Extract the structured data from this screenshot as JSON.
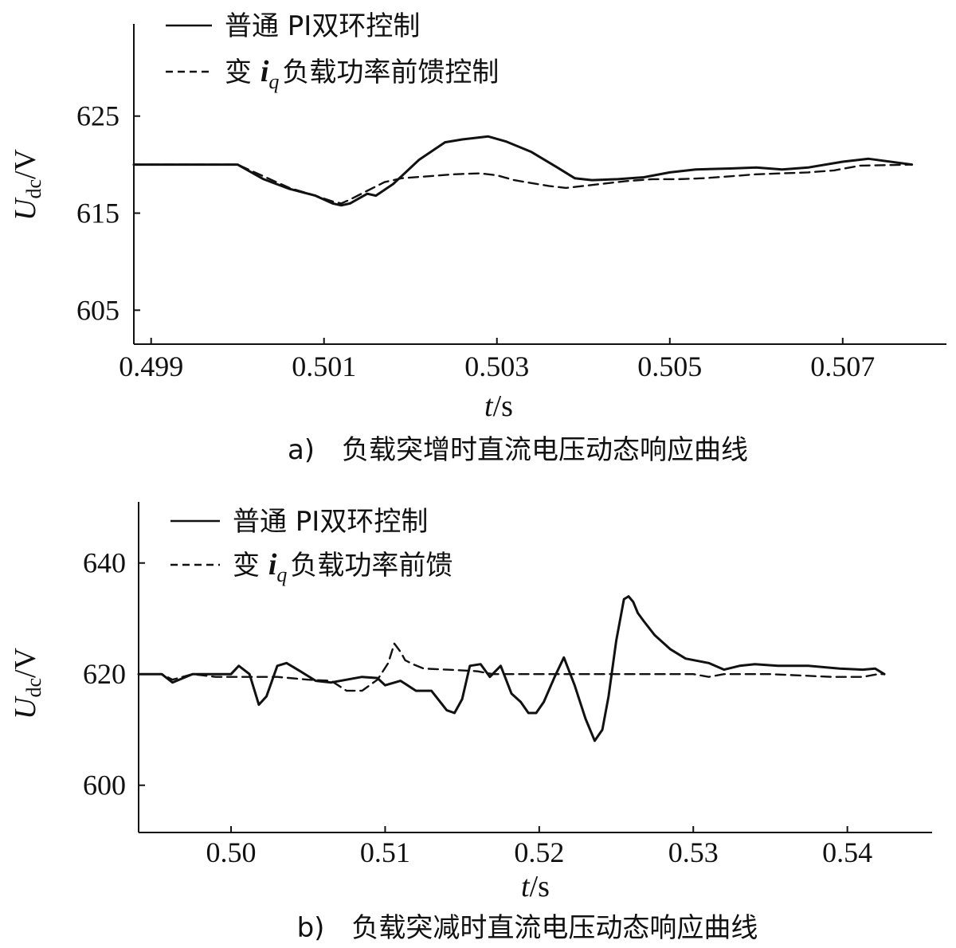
{
  "chart_data": [
    {
      "type": "line",
      "caption": "a)　负载突增时直流电压动态响应曲线",
      "ylabel_main": "U",
      "ylabel_sub": "dc",
      "ylabel_unit": "/V",
      "xlabel_main": "t",
      "xlabel_unit": "/s",
      "xlim": [
        0.4988,
        0.5082
      ],
      "ylim": [
        601.5,
        634.5
      ],
      "xticks": [
        0.499,
        0.501,
        0.503,
        0.505,
        0.507
      ],
      "xtick_labels": [
        "0.499",
        "0.501",
        "0.503",
        "0.505",
        "0.507"
      ],
      "yticks": [
        605,
        615,
        625
      ],
      "ytick_labels": [
        "605",
        "615",
        "625"
      ],
      "legend": [
        {
          "prefix": "普通 PI双环控制",
          "italic": "",
          "sub": "",
          "suffix": "",
          "style": "solid"
        },
        {
          "prefix": "变 ",
          "italic": "i",
          "sub": "q",
          "suffix": "负载功率前馈控制",
          "style": "dashed"
        }
      ],
      "series": [
        {
          "name": "普通 PI双环控制",
          "style": "solid",
          "x": [
            0.4988,
            0.5,
            0.5003,
            0.5006,
            0.5009,
            0.5011,
            0.5012,
            0.5013,
            0.5014,
            0.5015,
            0.5016,
            0.5018,
            0.5021,
            0.5024,
            0.5026,
            0.5028,
            0.5029,
            0.5031,
            0.5034,
            0.5037,
            0.5039,
            0.5041,
            0.5044,
            0.5047,
            0.505,
            0.5053,
            0.5057,
            0.506,
            0.5063,
            0.5066,
            0.507,
            0.5073,
            0.5078
          ],
          "y": [
            620,
            620,
            618.5,
            617.5,
            616.8,
            616.0,
            615.8,
            616.0,
            616.5,
            617.0,
            616.8,
            618.0,
            620.5,
            622.3,
            622.6,
            622.8,
            622.9,
            622.4,
            621.3,
            619.7,
            618.6,
            618.4,
            618.5,
            618.7,
            619.2,
            619.5,
            619.6,
            619.7,
            619.5,
            619.7,
            620.3,
            620.6,
            620.0
          ]
        },
        {
          "name": "变 iq负载功率前馈控制",
          "style": "dashed",
          "x": [
            0.4988,
            0.5,
            0.5003,
            0.5006,
            0.5009,
            0.5011,
            0.5012,
            0.5013,
            0.5015,
            0.5017,
            0.5019,
            0.5022,
            0.5025,
            0.5028,
            0.503,
            0.5032,
            0.5034,
            0.5036,
            0.5038,
            0.504,
            0.5042,
            0.5045,
            0.5048,
            0.5051,
            0.5054,
            0.5057,
            0.506,
            0.5063,
            0.5066,
            0.5069,
            0.5072,
            0.5078
          ],
          "y": [
            620,
            620,
            618.8,
            617.6,
            616.8,
            616.2,
            616.0,
            616.4,
            617.3,
            618.2,
            618.6,
            618.8,
            619.0,
            619.1,
            618.9,
            618.4,
            618.1,
            617.8,
            617.6,
            617.8,
            618.0,
            618.3,
            618.5,
            618.5,
            618.6,
            618.8,
            619.0,
            619.1,
            619.2,
            619.4,
            619.9,
            620.0
          ]
        }
      ]
    },
    {
      "type": "line",
      "caption": "b)　负载突减时直流电压动态响应曲线",
      "ylabel_main": "U",
      "ylabel_sub": "dc",
      "ylabel_unit": "/V",
      "xlabel_main": "t",
      "xlabel_unit": "/s",
      "xlim": [
        0.494,
        0.5455
      ],
      "ylim": [
        591.5,
        651
      ],
      "xticks": [
        0.5,
        0.51,
        0.52,
        0.53,
        0.54
      ],
      "xtick_labels": [
        "0.50",
        "0.51",
        "0.52",
        "0.53",
        "0.54"
      ],
      "yticks": [
        600,
        620,
        640
      ],
      "ytick_labels": [
        "600",
        "620",
        "640"
      ],
      "legend": [
        {
          "prefix": "普通 PI双环控制",
          "italic": "",
          "sub": "",
          "suffix": "",
          "style": "solid"
        },
        {
          "prefix": "变 ",
          "italic": "i",
          "sub": "q",
          "suffix": "负载功率前馈",
          "style": "dashed"
        }
      ],
      "series": [
        {
          "name": "普通 PI双环控制",
          "style": "solid",
          "x": [
            0.494,
            0.4955,
            0.4962,
            0.4975,
            0.499,
            0.5,
            0.5005,
            0.5012,
            0.5018,
            0.5023,
            0.503,
            0.5036,
            0.5045,
            0.5055,
            0.5065,
            0.5075,
            0.5085,
            0.5095,
            0.51,
            0.511,
            0.512,
            0.513,
            0.514,
            0.5145,
            0.515,
            0.5155,
            0.5162,
            0.5168,
            0.5175,
            0.5182,
            0.5188,
            0.5193,
            0.5198,
            0.5203,
            0.521,
            0.5216,
            0.5223,
            0.523,
            0.5236,
            0.5241,
            0.5245,
            0.525,
            0.5255,
            0.5258,
            0.5261,
            0.5264,
            0.5268,
            0.5275,
            0.5285,
            0.5295,
            0.531,
            0.532,
            0.533,
            0.534,
            0.5355,
            0.5375,
            0.5395,
            0.541,
            0.5418,
            0.5424
          ],
          "y": [
            620,
            620,
            618.5,
            620,
            620,
            620,
            621.5,
            620,
            614.5,
            616,
            621.5,
            622,
            620.5,
            618.8,
            618.5,
            619,
            619.5,
            619.3,
            618,
            618.8,
            617,
            617,
            613.5,
            613,
            615.5,
            621.5,
            621.8,
            619.5,
            621.5,
            616.5,
            615,
            613,
            613,
            615,
            619.5,
            623,
            618,
            612,
            608,
            610,
            616,
            626,
            633.5,
            634,
            633,
            631,
            629.5,
            627,
            624.5,
            622.8,
            622,
            620.8,
            621.5,
            621.8,
            621.5,
            621.5,
            621,
            620.8,
            621,
            620
          ]
        },
        {
          "name": "变 iq负载功率前馈",
          "style": "dashed",
          "x": [
            0.494,
            0.4955,
            0.4962,
            0.4975,
            0.499,
            0.5,
            0.501,
            0.503,
            0.505,
            0.5065,
            0.5075,
            0.5085,
            0.5095,
            0.5102,
            0.5106,
            0.511,
            0.5113,
            0.5118,
            0.5125,
            0.514,
            0.5155,
            0.516,
            0.517,
            0.52,
            0.525,
            0.53,
            0.531,
            0.532,
            0.535,
            0.539,
            0.541,
            0.542,
            0.5424
          ],
          "y": [
            620,
            620,
            619,
            620,
            619.5,
            619.5,
            619.5,
            619.5,
            619,
            618.8,
            617,
            617,
            619,
            622,
            625.5,
            624,
            622.5,
            621.8,
            621,
            620.8,
            620.6,
            620.5,
            620,
            620,
            620,
            620,
            619.5,
            620,
            620,
            619.5,
            619.5,
            620,
            620
          ]
        }
      ]
    }
  ]
}
